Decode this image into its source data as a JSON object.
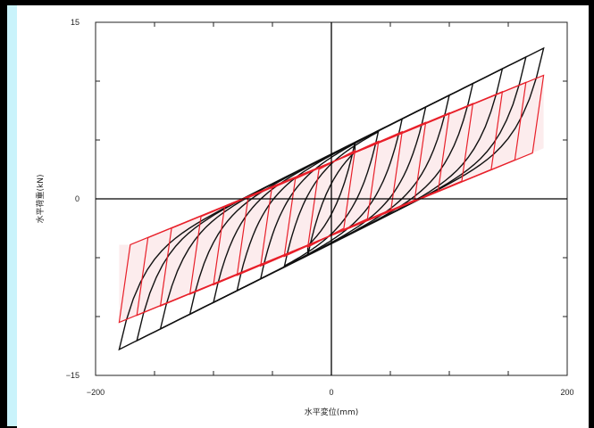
{
  "chart_data": {
    "type": "line",
    "title": "",
    "xlabel": "水平変位(mm)",
    "ylabel": "水平荷重(kN)",
    "xlim": [
      -200,
      200
    ],
    "ylim": [
      -15,
      15
    ],
    "x_ticks": [
      -200,
      0,
      200
    ],
    "y_ticks": [
      -15,
      0,
      15
    ],
    "x_tick_labels": [
      "−200",
      "0",
      "200"
    ],
    "y_tick_labels": [
      "−15",
      "0",
      "15"
    ],
    "grid": false,
    "legend": "none",
    "colors": {
      "experiment": "#111111",
      "model": "#e8202a",
      "model_fill": "#f7c9cb",
      "panel": "#c9f3fb",
      "frame": "#000000"
    },
    "amplitudes": [
      20,
      40,
      60,
      80,
      100,
      120,
      145,
      165,
      180
    ],
    "series": [
      {
        "name": "",
        "kind": "experimental hysteresis loops",
        "tangent_stiffness": 0.05,
        "characteristic_strength": 3.8,
        "peak_load_at_max": 10.6
      },
      {
        "name": "",
        "kind": "bilinear model loops",
        "initial_stiffness": 0.7,
        "post_yield_stiffness": 0.04,
        "characteristic_strength": 3.3,
        "peak_load_at_max": 10.5
      }
    ]
  }
}
